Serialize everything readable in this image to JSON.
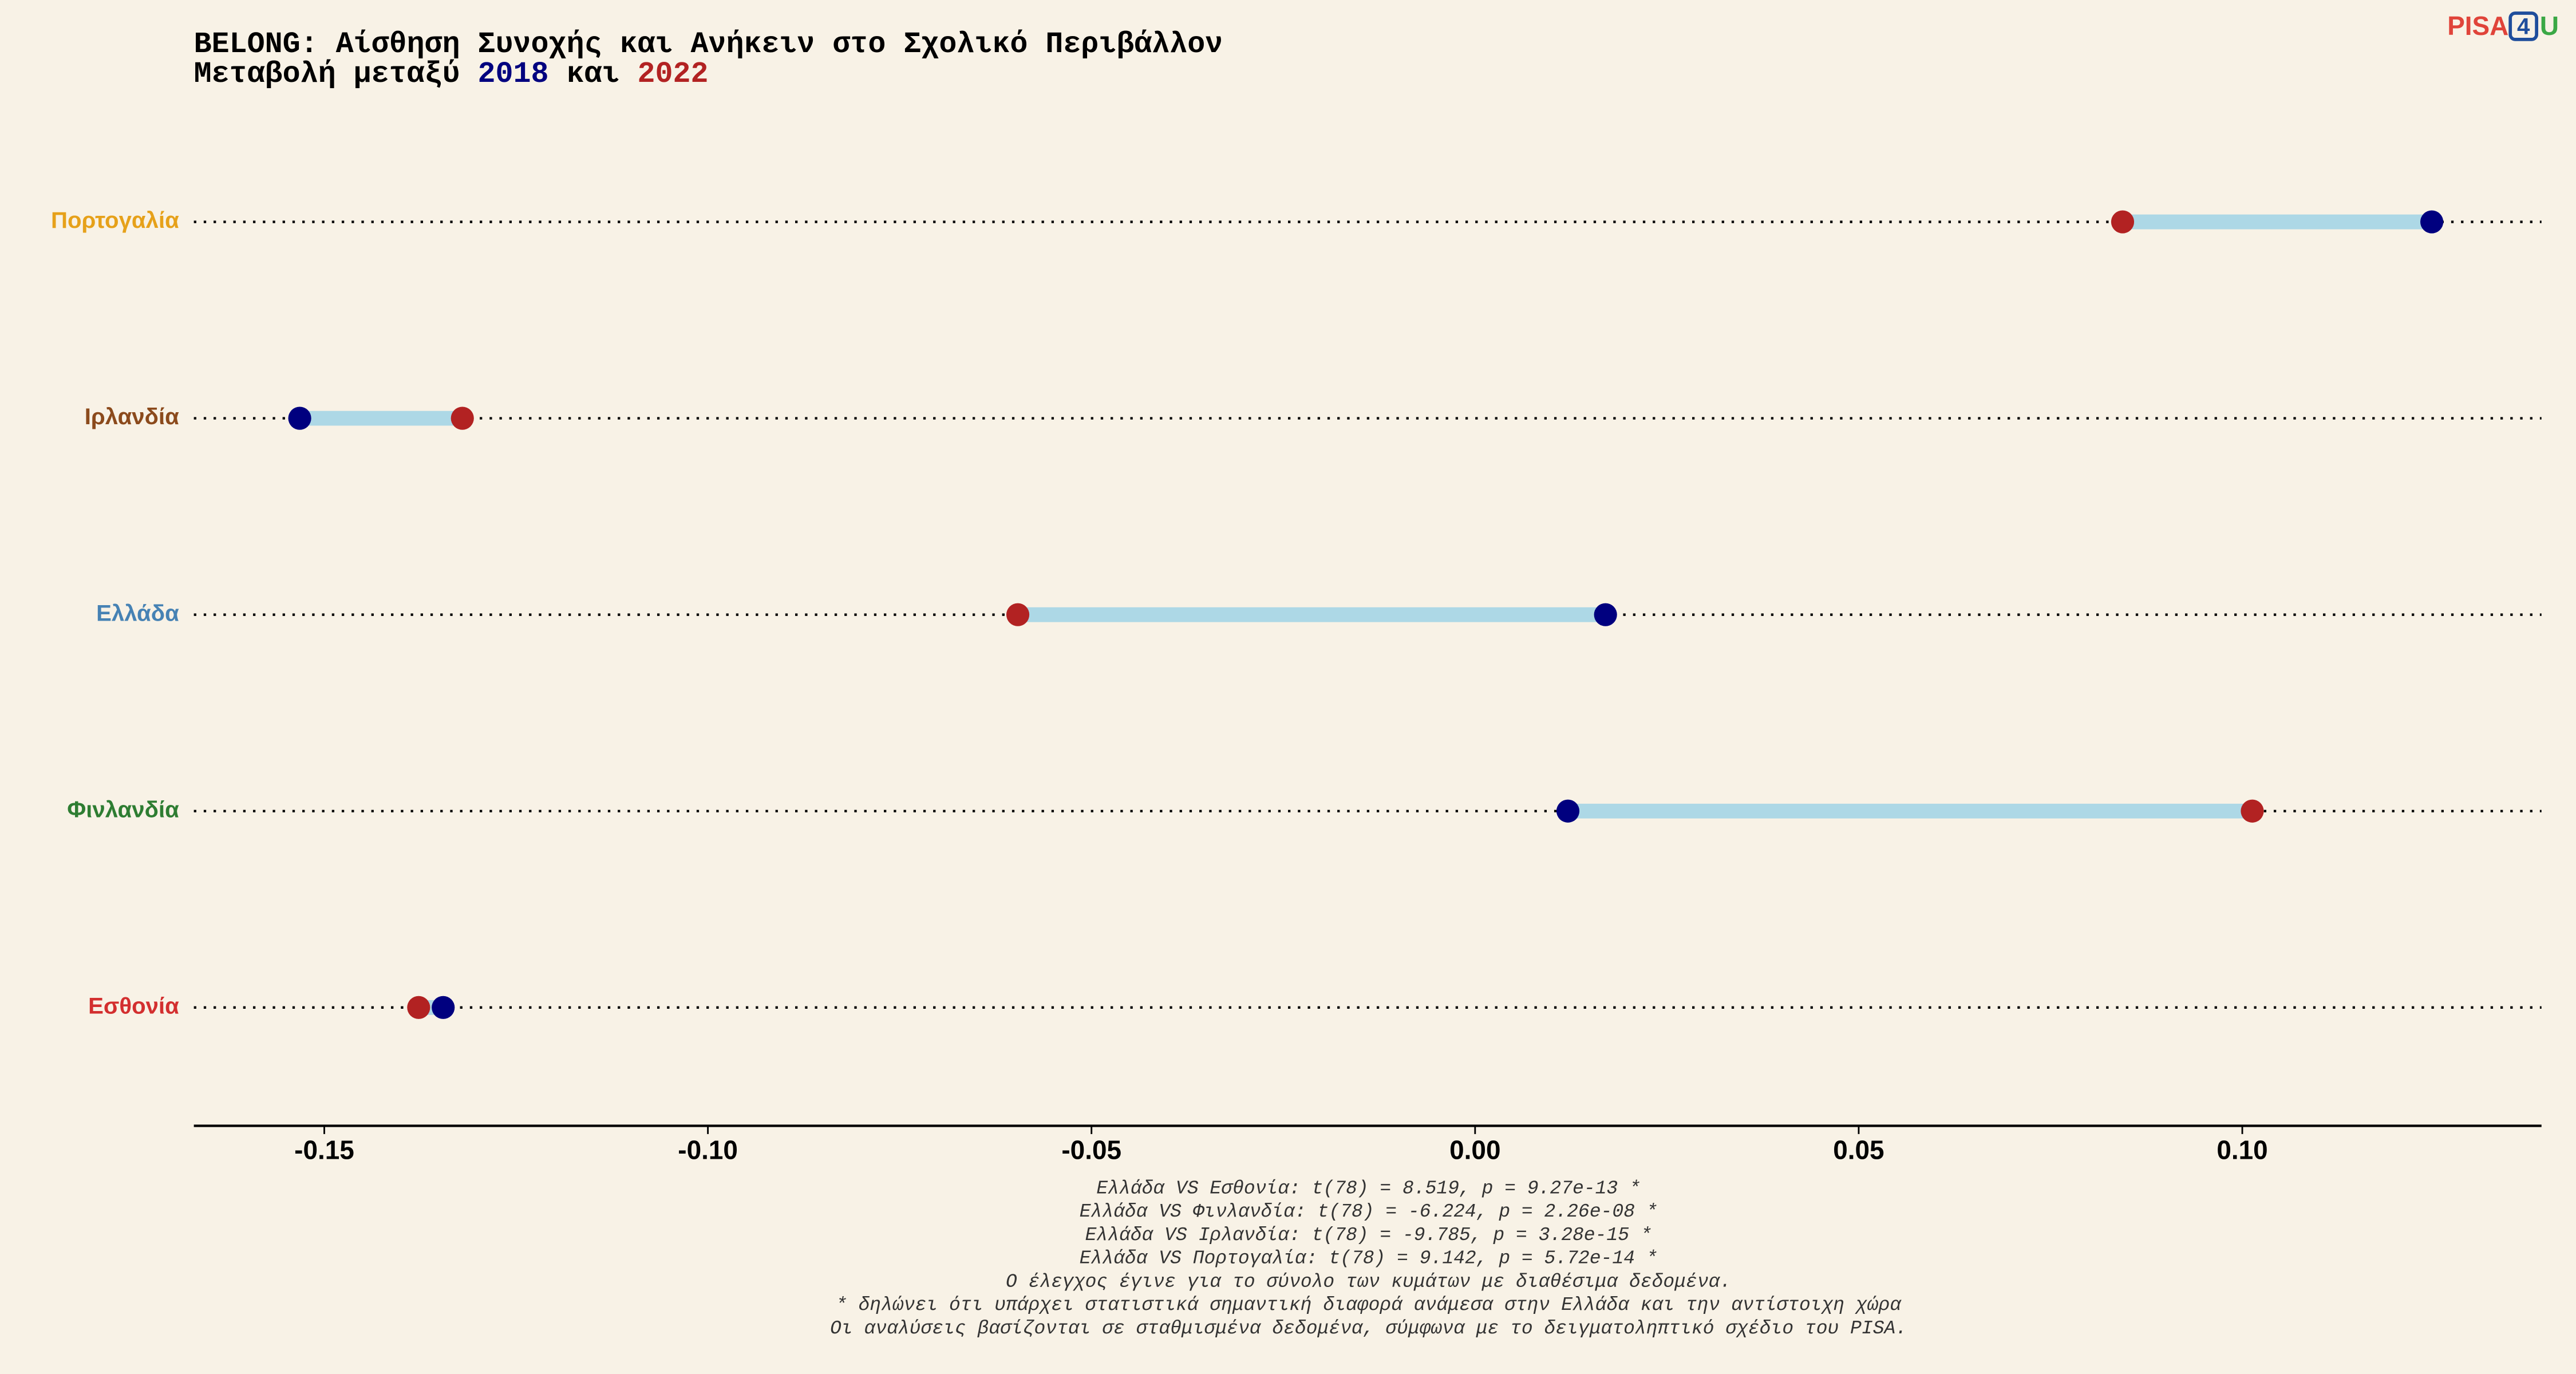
{
  "chart_data": {
    "type": "dumbbell",
    "title": "BELONG: Αίσθηση Συνοχής και Ανήκειν στο Σχολικό Περιβάλλον",
    "subtitle": {
      "before": "Μεταβολή μεταξύ",
      "connector": "και"
    },
    "logo": [
      "PISA",
      "4",
      "U"
    ],
    "categories": [
      "Πορτογαλία",
      "Ιρλανδία",
      "Ελλάδα",
      "Φινλανδία",
      "Εσθονία"
    ],
    "category_colors": [
      "#e6a11a",
      "#8b4a1c",
      "#4682b4",
      "#2e7d32",
      "#d32f2f"
    ],
    "series": [
      {
        "name": "2018",
        "color": "#00007f",
        "values": [
          0.1247,
          -0.1532,
          0.017,
          0.0121,
          -0.1345
        ]
      },
      {
        "name": "2022",
        "color": "#b22222",
        "values": [
          0.0844,
          -0.132,
          -0.0596,
          0.1013,
          -0.1377
        ]
      }
    ],
    "segment_color": "#add8e6",
    "xlim": [
      -0.167,
      0.139
    ],
    "xticks": [
      -0.15,
      {
        "value": -0.1,
        "label": "-0.10"
      },
      -0.05,
      {
        "value": 0,
        "label": "0.00"
      },
      0.05,
      {
        "value": 0.1,
        "label": "0.10"
      }
    ],
    "notes": [
      "Ελλάδα VS Εσθονία: t(78) = 8.519, p = 9.27e-13 *",
      "Ελλάδα VS Φινλανδία: t(78) = -6.224, p = 2.26e-08 *",
      "Ελλάδα VS Ιρλανδία: t(78) = -9.785, p = 3.28e-15 *",
      "Ελλάδα VS Πορτογαλία: t(78) = 9.142, p = 5.72e-14 *",
      "Ο έλεγχος έγινε για το σύνολο των κυμάτων με διαθέσιμα δεδομένα.",
      "* δηλώνει ότι υπάρχει στατιστικά σημαντική διαφορά ανάμεσα στην Ελλάδα και την αντίστοιχη χώρα",
      "Οι αναλύσεις βασίζονται σε σταθμισμένα δεδομένα, σύμφωνα με το δειγματοληπτικό σχέδιο του PISA."
    ]
  }
}
